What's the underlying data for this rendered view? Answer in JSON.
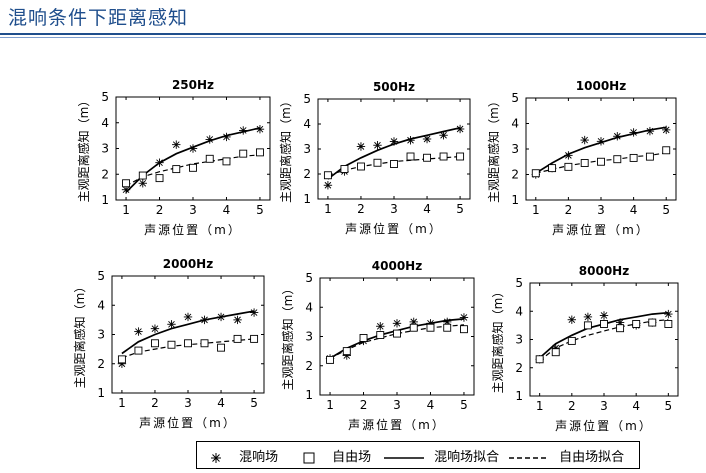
{
  "slide_title": "混响条件下距离感知",
  "legend": {
    "reverb_label": "混响场",
    "free_label": "自由场",
    "reverb_fit_label": "混响场拟合",
    "free_fit_label": "自由场拟合"
  },
  "chart_data": [
    {
      "type": "scatter",
      "title": "250Hz",
      "xlabel": "声源位置（m）",
      "ylabel": "主观距离感知（m）",
      "xlim": [
        0.7,
        5.3
      ],
      "ylim": [
        1,
        5
      ],
      "xticks": [
        "1",
        "2",
        "3",
        "4",
        "5"
      ],
      "yticks": [
        "1",
        "2",
        "3",
        "4",
        "5"
      ],
      "series": [
        {
          "name": "混响场",
          "marker": "asterisk",
          "x": [
            1,
            1.5,
            2,
            2.5,
            3,
            3.5,
            4,
            4.5,
            5
          ],
          "y": [
            1.4,
            1.65,
            2.45,
            3.15,
            3.0,
            3.35,
            3.45,
            3.7,
            3.75
          ]
        },
        {
          "name": "自由场",
          "marker": "square",
          "x": [
            1,
            1.5,
            2,
            2.5,
            3,
            3.5,
            4,
            4.5,
            5
          ],
          "y": [
            1.65,
            1.95,
            1.85,
            2.2,
            2.25,
            2.6,
            2.5,
            2.8,
            2.85
          ]
        },
        {
          "name": "混响场拟合",
          "line": "solid",
          "x": [
            1,
            1.5,
            2,
            2.5,
            3,
            3.5,
            4,
            4.5,
            5
          ],
          "y": [
            1.3,
            1.95,
            2.45,
            2.8,
            3.05,
            3.3,
            3.5,
            3.65,
            3.8
          ]
        },
        {
          "name": "自由场拟合",
          "line": "dashed",
          "x": [
            1,
            1.5,
            2,
            2.5,
            3,
            3.5,
            4,
            4.5,
            5
          ],
          "y": [
            1.55,
            1.9,
            2.1,
            2.25,
            2.4,
            2.5,
            2.6,
            2.7,
            2.75
          ]
        }
      ]
    },
    {
      "type": "scatter",
      "title": "500Hz",
      "xlabel": "声源位置（m）",
      "ylabel": "主观距离感知（m）",
      "xlim": [
        0.7,
        5.3
      ],
      "ylim": [
        1,
        5
      ],
      "xticks": [
        "1",
        "2",
        "3",
        "4",
        "5"
      ],
      "yticks": [
        "1",
        "2",
        "3",
        "4",
        "5"
      ],
      "series": [
        {
          "name": "混响场",
          "marker": "asterisk",
          "x": [
            1,
            1.5,
            2,
            2.5,
            3,
            3.5,
            4,
            4.5,
            5
          ],
          "y": [
            1.55,
            2.1,
            3.1,
            3.15,
            3.3,
            3.35,
            3.4,
            3.55,
            3.8
          ]
        },
        {
          "name": "自由场",
          "marker": "square",
          "x": [
            1,
            1.5,
            2,
            2.5,
            3,
            3.5,
            4,
            4.5,
            5
          ],
          "y": [
            1.95,
            2.2,
            2.3,
            2.45,
            2.4,
            2.7,
            2.65,
            2.7,
            2.7
          ]
        },
        {
          "name": "混响场拟合",
          "line": "solid",
          "x": [
            1,
            1.5,
            2,
            2.5,
            3,
            3.5,
            4,
            4.5,
            5
          ],
          "y": [
            1.8,
            2.3,
            2.65,
            2.95,
            3.2,
            3.4,
            3.55,
            3.7,
            3.85
          ]
        },
        {
          "name": "自由场拟合",
          "line": "dashed",
          "x": [
            1,
            1.5,
            2,
            2.5,
            3,
            3.5,
            4,
            4.5,
            5
          ],
          "y": [
            1.95,
            2.15,
            2.3,
            2.4,
            2.5,
            2.55,
            2.6,
            2.65,
            2.7
          ]
        }
      ]
    },
    {
      "type": "scatter",
      "title": "1000Hz",
      "xlabel": "声源位置（m）",
      "ylabel": "主观距离感知（m）",
      "xlim": [
        0.7,
        5.3
      ],
      "ylim": [
        1,
        5
      ],
      "xticks": [
        "1",
        "2",
        "3",
        "4",
        "5"
      ],
      "yticks": [
        "1",
        "2",
        "3",
        "4",
        "5"
      ],
      "series": [
        {
          "name": "混响场",
          "marker": "asterisk",
          "x": [
            1,
            1.5,
            2,
            2.5,
            3,
            3.5,
            4,
            4.5,
            5
          ],
          "y": [
            2.0,
            2.25,
            2.75,
            3.35,
            3.3,
            3.5,
            3.65,
            3.7,
            3.75
          ]
        },
        {
          "name": "自由场",
          "marker": "square",
          "x": [
            1,
            1.5,
            2,
            2.5,
            3,
            3.5,
            4,
            4.5,
            5
          ],
          "y": [
            2.05,
            2.25,
            2.3,
            2.45,
            2.5,
            2.6,
            2.65,
            2.7,
            2.95
          ]
        },
        {
          "name": "混响场拟合",
          "line": "solid",
          "x": [
            1,
            1.5,
            2,
            2.5,
            3,
            3.5,
            4,
            4.5,
            5
          ],
          "y": [
            2.05,
            2.45,
            2.8,
            3.05,
            3.25,
            3.45,
            3.6,
            3.75,
            3.85
          ]
        },
        {
          "name": "自由场拟合",
          "line": "dashed",
          "x": [
            1,
            1.5,
            2,
            2.5,
            3,
            3.5,
            4,
            4.5,
            5
          ],
          "y": [
            2.05,
            2.2,
            2.35,
            2.45,
            2.55,
            2.6,
            2.7,
            2.75,
            2.85
          ]
        }
      ]
    },
    {
      "type": "scatter",
      "title": "2000Hz",
      "xlabel": "声源位置（m）",
      "ylabel": "主观距离感知（m）",
      "xlim": [
        0.7,
        5.3
      ],
      "ylim": [
        1,
        5
      ],
      "xticks": [
        "1",
        "2",
        "3",
        "4",
        "5"
      ],
      "yticks": [
        "1",
        "2",
        "3",
        "4",
        "5"
      ],
      "series": [
        {
          "name": "混响场",
          "marker": "asterisk",
          "x": [
            1,
            1.5,
            2,
            2.5,
            3,
            3.5,
            4,
            4.5,
            5
          ],
          "y": [
            2.0,
            3.1,
            3.2,
            3.35,
            3.6,
            3.5,
            3.6,
            3.5,
            3.75
          ]
        },
        {
          "name": "自由场",
          "marker": "square",
          "x": [
            1,
            1.5,
            2,
            2.5,
            3,
            3.5,
            4,
            4.5,
            5
          ],
          "y": [
            2.15,
            2.45,
            2.7,
            2.65,
            2.7,
            2.7,
            2.55,
            2.85,
            2.85
          ]
        },
        {
          "name": "混响场拟合",
          "line": "solid",
          "x": [
            1,
            1.5,
            2,
            2.5,
            3,
            3.5,
            4,
            4.5,
            5
          ],
          "y": [
            2.35,
            2.75,
            3.0,
            3.2,
            3.35,
            3.5,
            3.6,
            3.7,
            3.8
          ]
        },
        {
          "name": "自由场拟合",
          "line": "dashed",
          "x": [
            1,
            1.5,
            2,
            2.5,
            3,
            3.5,
            4,
            4.5,
            5
          ],
          "y": [
            2.2,
            2.4,
            2.5,
            2.6,
            2.65,
            2.7,
            2.75,
            2.8,
            2.85
          ]
        }
      ]
    },
    {
      "type": "scatter",
      "title": "4000Hz",
      "xlabel": "声源位置（m）",
      "ylabel": "主观距离感知（m）",
      "xlim": [
        0.7,
        5.3
      ],
      "ylim": [
        1,
        5
      ],
      "xticks": [
        "1",
        "2",
        "3",
        "4",
        "5"
      ],
      "yticks": [
        "1",
        "2",
        "3",
        "4",
        "5"
      ],
      "series": [
        {
          "name": "混响场",
          "marker": "asterisk",
          "x": [
            1,
            1.5,
            2,
            2.5,
            3,
            3.5,
            4,
            4.5,
            5
          ],
          "y": [
            2.25,
            2.35,
            2.85,
            3.35,
            3.45,
            3.5,
            3.45,
            3.5,
            3.65
          ]
        },
        {
          "name": "自由场",
          "marker": "square",
          "x": [
            1,
            1.5,
            2,
            2.5,
            3,
            3.5,
            4,
            4.5,
            5
          ],
          "y": [
            2.2,
            2.5,
            2.95,
            3.05,
            3.1,
            3.3,
            3.3,
            3.3,
            3.25
          ]
        },
        {
          "name": "混响场拟合",
          "line": "solid",
          "x": [
            1,
            1.5,
            2,
            2.5,
            3,
            3.5,
            4,
            4.5,
            5
          ],
          "y": [
            2.25,
            2.6,
            2.85,
            3.05,
            3.2,
            3.35,
            3.45,
            3.55,
            3.6
          ]
        },
        {
          "name": "自由场拟合",
          "line": "dashed",
          "x": [
            1,
            1.5,
            2,
            2.5,
            3,
            3.5,
            4,
            4.5,
            5
          ],
          "y": [
            2.25,
            2.55,
            2.8,
            2.95,
            3.1,
            3.2,
            3.3,
            3.35,
            3.4
          ]
        }
      ]
    },
    {
      "type": "scatter",
      "title": "8000Hz",
      "xlabel": "声源位置（m）",
      "ylabel": "主观距离感知（m）",
      "xlim": [
        0.7,
        5.3
      ],
      "ylim": [
        1,
        5
      ],
      "xticks": [
        "1",
        "2",
        "3",
        "4",
        "5"
      ],
      "yticks": [
        "1",
        "2",
        "3",
        "4",
        "5"
      ],
      "series": [
        {
          "name": "混响场",
          "marker": "asterisk",
          "x": [
            1,
            1.5,
            2,
            2.5,
            3,
            3.5,
            4,
            4.5,
            5
          ],
          "y": [
            2.3,
            2.7,
            3.7,
            3.8,
            3.85,
            3.6,
            3.5,
            3.6,
            3.9
          ]
        },
        {
          "name": "自由场",
          "marker": "square",
          "x": [
            1,
            1.5,
            2,
            2.5,
            3,
            3.5,
            4,
            4.5,
            5
          ],
          "y": [
            2.3,
            2.55,
            2.95,
            3.5,
            3.55,
            3.4,
            3.55,
            3.6,
            3.55
          ]
        },
        {
          "name": "混响场拟合",
          "line": "solid",
          "x": [
            1,
            1.5,
            2,
            2.5,
            3,
            3.5,
            4,
            4.5,
            5
          ],
          "y": [
            2.35,
            2.85,
            3.15,
            3.4,
            3.55,
            3.7,
            3.8,
            3.9,
            3.95
          ]
        },
        {
          "name": "自由场拟合",
          "line": "dashed",
          "x": [
            1,
            1.5,
            2,
            2.5,
            3,
            3.5,
            4,
            4.5,
            5
          ],
          "y": [
            2.25,
            2.7,
            2.95,
            3.15,
            3.3,
            3.45,
            3.55,
            3.65,
            3.7
          ]
        }
      ]
    }
  ]
}
